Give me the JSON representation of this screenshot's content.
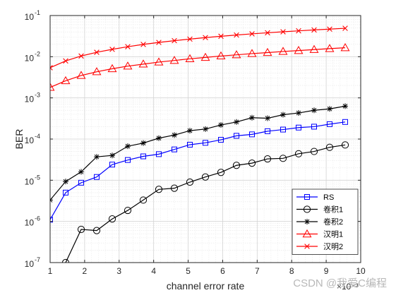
{
  "chart_data": {
    "type": "line",
    "xlabel": "channel error rate",
    "ylabel": "BER",
    "x_exponent_label": "×10⁻³",
    "x_scale": 0.001,
    "xlim": [
      1,
      10
    ],
    "ylim": [
      1e-07,
      0.1
    ],
    "yscale": "log",
    "x_ticks": [
      1,
      2,
      3,
      4,
      5,
      6,
      7,
      8,
      9,
      10
    ],
    "y_ticks": [
      {
        "value": 1e-07,
        "base": "10",
        "exp": "-7"
      },
      {
        "value": 1e-06,
        "base": "10",
        "exp": "-6"
      },
      {
        "value": 1e-05,
        "base": "10",
        "exp": "-5"
      },
      {
        "value": 0.0001,
        "base": "10",
        "exp": "-4"
      },
      {
        "value": 0.001,
        "base": "10",
        "exp": "-3"
      },
      {
        "value": 0.01,
        "base": "10",
        "exp": "-2"
      },
      {
        "value": 0.1,
        "base": "10",
        "exp": "-1"
      }
    ],
    "grid": true,
    "legend_position": "bottom-right",
    "x": [
      1.0,
      1.45,
      1.9,
      2.35,
      2.8,
      3.25,
      3.7,
      4.15,
      4.6,
      5.05,
      5.5,
      5.95,
      6.4,
      6.85,
      7.3,
      7.75,
      8.2,
      8.65,
      9.1,
      9.55
    ],
    "series": [
      {
        "name": "RS",
        "color": "#0000ff",
        "marker": "square",
        "values": [
          1.1e-06,
          5e-06,
          8.7e-06,
          1.2e-05,
          2.4e-05,
          3.1e-05,
          3.8e-05,
          4.3e-05,
          5.6e-05,
          7.3e-05,
          8.1e-05,
          9.6e-05,
          0.00012,
          0.00013,
          0.000155,
          0.00017,
          0.00019,
          0.0002,
          0.00023,
          0.00026
        ]
      },
      {
        "name": "卷积1",
        "color": "#000000",
        "marker": "circle",
        "values": [
          2.5e-08,
          1e-07,
          6.4e-07,
          6e-07,
          1.15e-06,
          1.85e-06,
          3.3e-06,
          6e-06,
          6.4e-06,
          9e-06,
          1.2e-05,
          1.55e-05,
          2.3e-05,
          2.6e-05,
          3.3e-05,
          3.4e-05,
          4.4e-05,
          5e-05,
          6.3e-05,
          7.2e-05
        ]
      },
      {
        "name": "卷积2",
        "color": "#000000",
        "marker": "asterisk",
        "values": [
          3.3e-06,
          9.3e-06,
          1.6e-05,
          3.7e-05,
          4e-05,
          6.7e-05,
          8e-05,
          0.000105,
          0.000125,
          0.00016,
          0.000175,
          0.00022,
          0.00026,
          0.00033,
          0.00032,
          0.00039,
          0.00043,
          0.0005,
          0.00054,
          0.00063
        ]
      },
      {
        "name": "汉明1",
        "color": "#ff0000",
        "marker": "triangle",
        "values": [
          0.0018,
          0.0026,
          0.0035,
          0.0043,
          0.0051,
          0.0059,
          0.0066,
          0.0074,
          0.0081,
          0.0089,
          0.0096,
          0.0104,
          0.0111,
          0.0119,
          0.0126,
          0.0134,
          0.0141,
          0.0149,
          0.0157,
          0.0165
        ]
      },
      {
        "name": "汉明2",
        "color": "#ff0000",
        "marker": "x",
        "values": [
          0.0054,
          0.0079,
          0.0104,
          0.0128,
          0.0151,
          0.0175,
          0.0199,
          0.0222,
          0.0245,
          0.0268,
          0.0291,
          0.0314,
          0.0336,
          0.0359,
          0.0381,
          0.0403,
          0.0425,
          0.0447,
          0.0468,
          0.049
        ]
      }
    ]
  },
  "watermark": "CSDN @我爱C编程"
}
